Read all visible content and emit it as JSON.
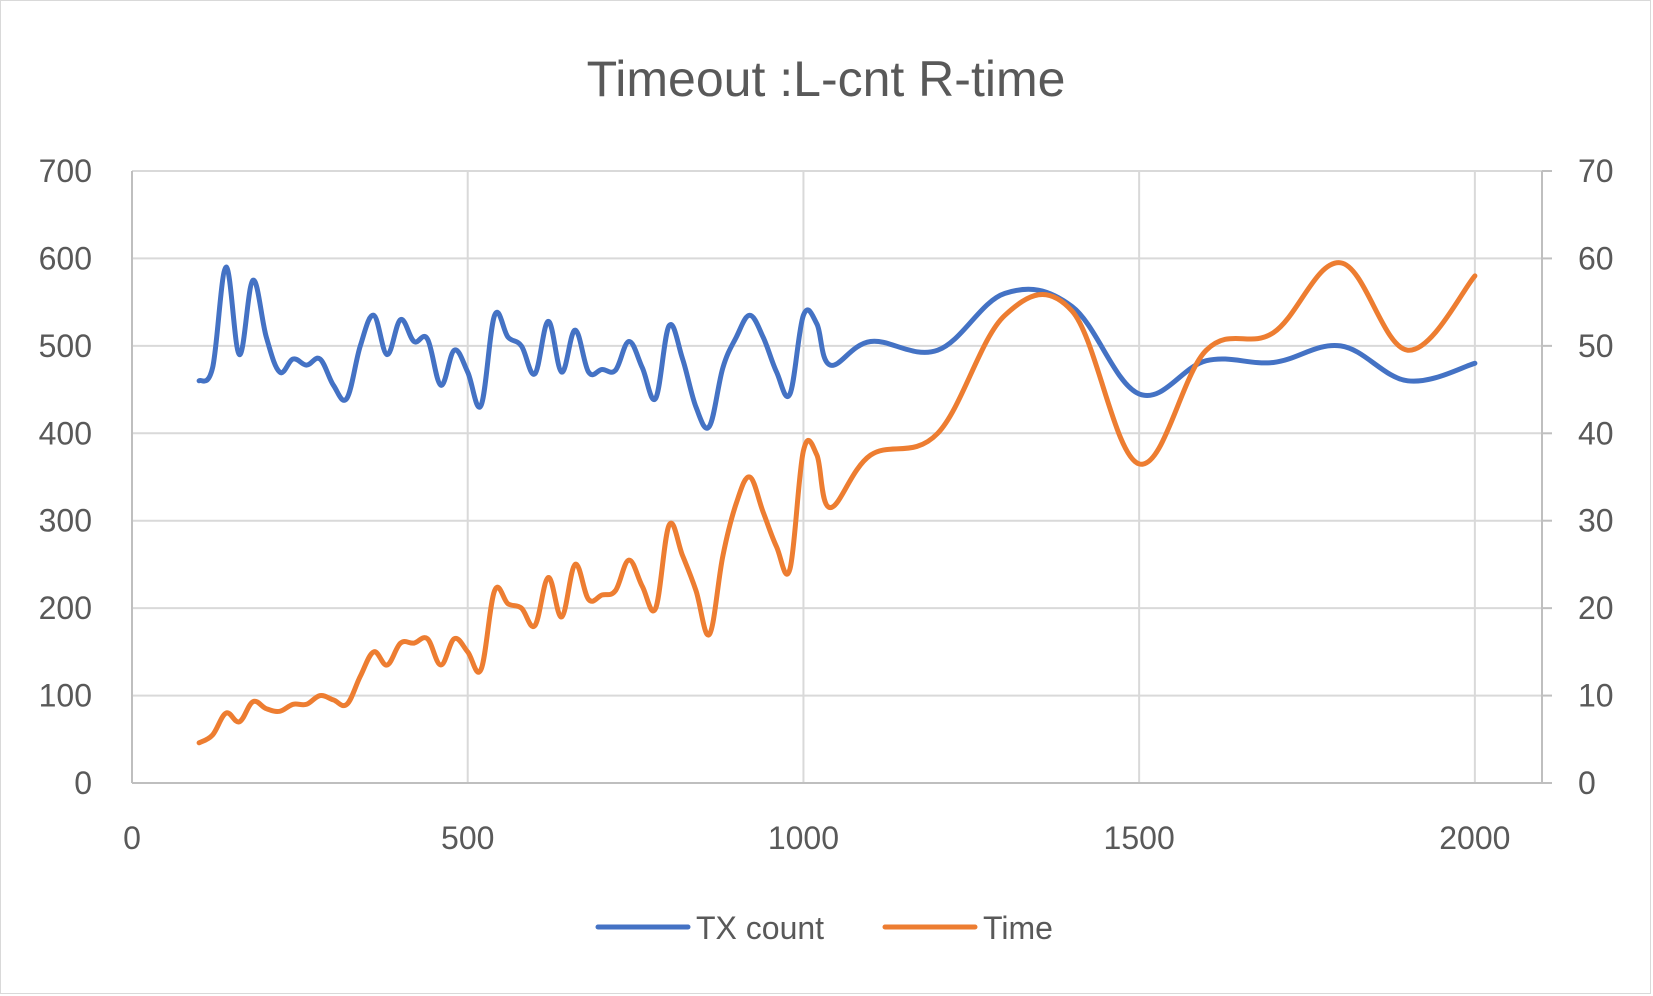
{
  "chart_data": {
    "type": "line",
    "title": "Timeout :L-cnt R-time",
    "xlim": [
      0,
      2100
    ],
    "x_ticks": [
      "0",
      "500",
      "1000",
      "1500",
      "2000"
    ],
    "x_tick_values": [
      0,
      500,
      1000,
      1500,
      2000
    ],
    "ylim_left": [
      0,
      700
    ],
    "y_left_ticks": [
      "0",
      "100",
      "200",
      "300",
      "400",
      "500",
      "600",
      "700"
    ],
    "ylim_right": [
      0,
      70
    ],
    "y_right_ticks": [
      "0",
      "10",
      "20",
      "30",
      "40",
      "50",
      "60",
      "70"
    ],
    "grid": true,
    "legend_position": "bottom",
    "series": [
      {
        "name": "TX count",
        "axis": "left",
        "color": "#4472C4",
        "x": [
          100,
          120,
          140,
          160,
          180,
          200,
          220,
          240,
          260,
          280,
          300,
          320,
          340,
          360,
          380,
          400,
          420,
          440,
          460,
          480,
          500,
          520,
          540,
          560,
          580,
          600,
          620,
          640,
          660,
          680,
          700,
          720,
          740,
          760,
          780,
          800,
          820,
          840,
          860,
          880,
          900,
          920,
          940,
          960,
          980,
          1000,
          1020,
          1040,
          1100,
          1200,
          1300,
          1400,
          1500,
          1600,
          1700,
          1800,
          1900,
          2000
        ],
        "y": [
          460,
          475,
          590,
          490,
          575,
          510,
          470,
          485,
          478,
          485,
          455,
          440,
          500,
          535,
          490,
          530,
          505,
          508,
          455,
          495,
          470,
          432,
          535,
          510,
          500,
          468,
          528,
          470,
          518,
          470,
          473,
          472,
          505,
          475,
          440,
          523,
          485,
          430,
          408,
          475,
          510,
          535,
          510,
          470,
          445,
          535,
          525,
          478,
          505,
          495,
          560,
          545,
          445,
          483,
          481,
          500,
          460,
          480
        ]
      },
      {
        "name": "Time",
        "axis": "right",
        "color": "#ED7D31",
        "x": [
          100,
          120,
          140,
          160,
          180,
          200,
          220,
          240,
          260,
          280,
          300,
          320,
          340,
          360,
          380,
          400,
          420,
          440,
          460,
          480,
          500,
          520,
          540,
          560,
          580,
          600,
          620,
          640,
          660,
          680,
          700,
          720,
          740,
          760,
          780,
          800,
          820,
          840,
          860,
          880,
          900,
          920,
          940,
          960,
          980,
          1000,
          1020,
          1040,
          1100,
          1200,
          1300,
          1400,
          1500,
          1600,
          1700,
          1800,
          1900,
          2000
        ],
        "y": [
          4.6,
          5.5,
          8.0,
          7.0,
          9.3,
          8.5,
          8.2,
          9.0,
          9.0,
          10.0,
          9.5,
          9.0,
          12.2,
          15.0,
          13.5,
          16.0,
          16.0,
          16.5,
          13.5,
          16.5,
          15.0,
          13.0,
          22.0,
          20.5,
          20.0,
          18.0,
          23.5,
          19.0,
          25.0,
          21.0,
          21.5,
          22.0,
          25.5,
          22.5,
          20.0,
          29.5,
          26.0,
          22.0,
          17.0,
          26.0,
          32.0,
          35.0,
          31.0,
          27.0,
          24.5,
          38.0,
          37.5,
          31.5,
          37.5,
          40.0,
          53.5,
          54.0,
          36.5,
          49.5,
          51.5,
          59.5,
          49.5,
          58.0
        ]
      }
    ]
  }
}
